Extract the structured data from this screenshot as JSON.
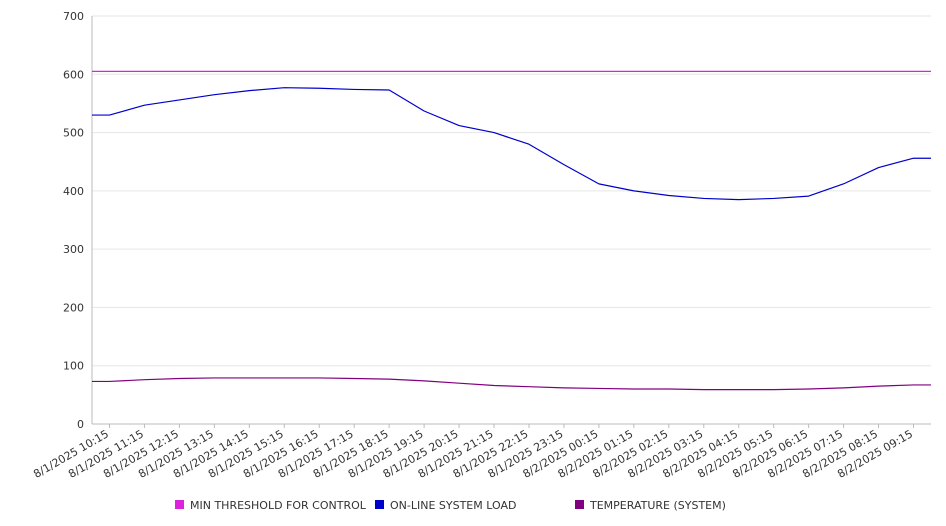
{
  "chart_data": {
    "type": "line",
    "title": "",
    "xlabel": "",
    "ylabel": "",
    "ylim": [
      0,
      700
    ],
    "yticks": [
      0,
      100,
      200,
      300,
      400,
      500,
      600,
      700
    ],
    "grid": true,
    "legend_position": "bottom",
    "categories": [
      "8/1/2025 10:15",
      "8/1/2025 11:15",
      "8/1/2025 12:15",
      "8/1/2025 13:15",
      "8/1/2025 14:15",
      "8/1/2025 15:15",
      "8/1/2025 16:15",
      "8/1/2025 17:15",
      "8/1/2025 18:15",
      "8/1/2025 19:15",
      "8/1/2025 20:15",
      "8/1/2025 21:15",
      "8/1/2025 22:15",
      "8/1/2025 23:15",
      "8/2/2025 00:15",
      "8/2/2025 01:15",
      "8/2/2025 02:15",
      "8/2/2025 03:15",
      "8/2/2025 04:15",
      "8/2/2025 05:15",
      "8/2/2025 06:15",
      "8/2/2025 07:15",
      "8/2/2025 08:15",
      "8/2/2025 09:15"
    ],
    "series": [
      {
        "name": "MIN THRESHOLD FOR CONTROL",
        "color": "#dd22dd",
        "values": [
          605,
          605,
          605,
          605,
          605,
          605,
          605,
          605,
          605,
          605,
          605,
          605,
          605,
          605,
          605,
          605,
          605,
          605,
          605,
          605,
          605,
          605,
          605,
          605
        ]
      },
      {
        "name": "ON-LINE SYSTEM LOAD",
        "color": "#0000cc",
        "values": [
          530,
          547,
          556,
          565,
          572,
          577,
          576,
          574,
          573,
          537,
          512,
          500,
          480,
          445,
          412,
          400,
          392,
          387,
          385,
          387,
          391,
          412,
          440,
          456
        ]
      },
      {
        "name": "TEMPERATURE (SYSTEM)",
        "color": "#800080",
        "values": [
          73,
          76,
          78,
          79,
          79,
          79,
          79,
          78,
          77,
          74,
          70,
          66,
          64,
          62,
          61,
          60,
          60,
          59,
          59,
          59,
          60,
          62,
          65,
          67
        ]
      }
    ]
  }
}
